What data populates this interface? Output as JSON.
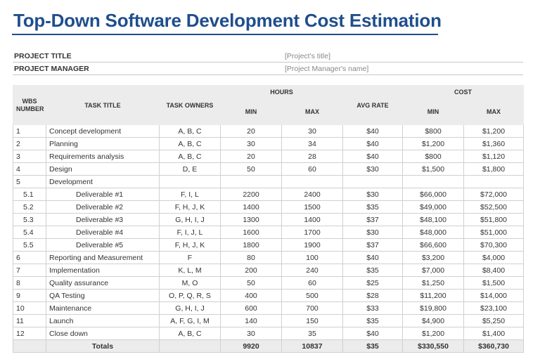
{
  "title": "Top-Down Software Development Cost Estimation",
  "meta": {
    "project_title_label": "PROJECT TITLE",
    "project_title_value": "[Project's title]",
    "project_manager_label": "PROJECT MANAGER",
    "project_manager_value": "[Project Manager's name]"
  },
  "headers": {
    "wbs": "WBS NUMBER",
    "task_title": "TASK TITLE",
    "task_owners": "TASK OWNERS",
    "hours": "HOURS",
    "hours_min": "MIN",
    "hours_max": "MAX",
    "avg_rate": "AVG RATE",
    "cost": "COST",
    "cost_min": "MIN",
    "cost_max": "MAX"
  },
  "rows": [
    {
      "wbs": "1",
      "title": "Concept development",
      "owners": "A, B, C",
      "hmin": "20",
      "hmax": "30",
      "rate": "$40",
      "cmin": "$800",
      "cmax": "$1,200",
      "sub": false
    },
    {
      "wbs": "2",
      "title": "Planning",
      "owners": "A, B, C",
      "hmin": "30",
      "hmax": "34",
      "rate": "$40",
      "cmin": "$1,200",
      "cmax": "$1,360",
      "sub": false
    },
    {
      "wbs": "3",
      "title": "Requirements analysis",
      "owners": "A, B, C",
      "hmin": "20",
      "hmax": "28",
      "rate": "$40",
      "cmin": "$800",
      "cmax": "$1,120",
      "sub": false
    },
    {
      "wbs": "4",
      "title": "Design",
      "owners": "D, E",
      "hmin": "50",
      "hmax": "60",
      "rate": "$30",
      "cmin": "$1,500",
      "cmax": "$1,800",
      "sub": false
    },
    {
      "wbs": "5",
      "title": "Development",
      "owners": "",
      "hmin": "",
      "hmax": "",
      "rate": "",
      "cmin": "",
      "cmax": "",
      "sub": false
    },
    {
      "wbs": "5.1",
      "title": "Deliverable #1",
      "owners": "F, I, L",
      "hmin": "2200",
      "hmax": "2400",
      "rate": "$30",
      "cmin": "$66,000",
      "cmax": "$72,000",
      "sub": true
    },
    {
      "wbs": "5.2",
      "title": "Deliverable #2",
      "owners": "F, H, J, K",
      "hmin": "1400",
      "hmax": "1500",
      "rate": "$35",
      "cmin": "$49,000",
      "cmax": "$52,500",
      "sub": true
    },
    {
      "wbs": "5.3",
      "title": "Deliverable #3",
      "owners": "G, H, I, J",
      "hmin": "1300",
      "hmax": "1400",
      "rate": "$37",
      "cmin": "$48,100",
      "cmax": "$51,800",
      "sub": true
    },
    {
      "wbs": "5.4",
      "title": "Deliverable #4",
      "owners": "F, I, J, L",
      "hmin": "1600",
      "hmax": "1700",
      "rate": "$30",
      "cmin": "$48,000",
      "cmax": "$51,000",
      "sub": true
    },
    {
      "wbs": "5.5",
      "title": "Deliverable #5",
      "owners": "F, H, J, K",
      "hmin": "1800",
      "hmax": "1900",
      "rate": "$37",
      "cmin": "$66,600",
      "cmax": "$70,300",
      "sub": true
    },
    {
      "wbs": "6",
      "title": "Reporting and Measurement",
      "owners": "F",
      "hmin": "80",
      "hmax": "100",
      "rate": "$40",
      "cmin": "$3,200",
      "cmax": "$4,000",
      "sub": false
    },
    {
      "wbs": "7",
      "title": "Implementation",
      "owners": "K, L, M",
      "hmin": "200",
      "hmax": "240",
      "rate": "$35",
      "cmin": "$7,000",
      "cmax": "$8,400",
      "sub": false
    },
    {
      "wbs": "8",
      "title": "Quality assurance",
      "owners": "M, O",
      "hmin": "50",
      "hmax": "60",
      "rate": "$25",
      "cmin": "$1,250",
      "cmax": "$1,500",
      "sub": false
    },
    {
      "wbs": "9",
      "title": "QA Testing",
      "owners": "O, P, Q, R, S",
      "hmin": "400",
      "hmax": "500",
      "rate": "$28",
      "cmin": "$11,200",
      "cmax": "$14,000",
      "sub": false
    },
    {
      "wbs": "10",
      "title": "Maintenance",
      "owners": "G, H, I, J",
      "hmin": "600",
      "hmax": "700",
      "rate": "$33",
      "cmin": "$19,800",
      "cmax": "$23,100",
      "sub": false
    },
    {
      "wbs": "11",
      "title": "Launch",
      "owners": "A, F, G, I, M",
      "hmin": "140",
      "hmax": "150",
      "rate": "$35",
      "cmin": "$4,900",
      "cmax": "$5,250",
      "sub": false
    },
    {
      "wbs": "12",
      "title": "Close down",
      "owners": "A, B, C",
      "hmin": "30",
      "hmax": "35",
      "rate": "$40",
      "cmin": "$1,200",
      "cmax": "$1,400",
      "sub": false
    }
  ],
  "totals": {
    "label": "Totals",
    "hmin": "9920",
    "hmax": "10837",
    "rate": "$35",
    "cmin": "$330,550",
    "cmax": "$360,730"
  },
  "colors": {
    "title": "#1f4e8c",
    "header_bg": "#ececec"
  }
}
